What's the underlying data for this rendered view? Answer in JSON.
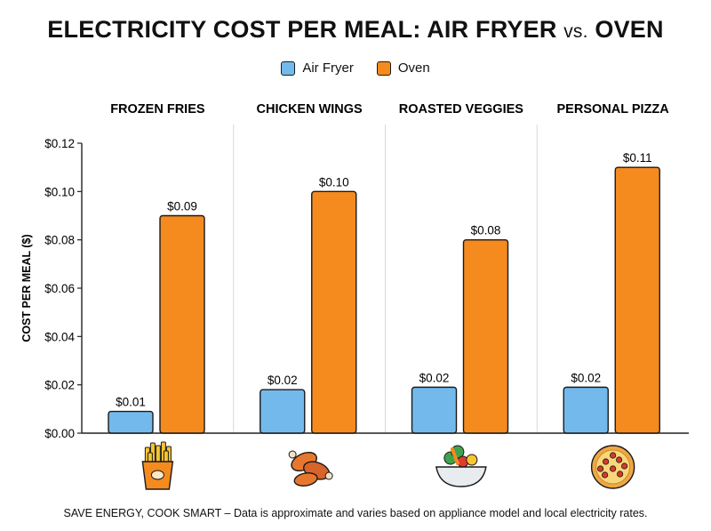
{
  "title": {
    "part1": "ELECTRICITY COST PER MEAL: AIR FRYER ",
    "vs": "vs.",
    "part2": " OVEN"
  },
  "legend": {
    "air_fryer": "Air Fryer",
    "oven": "Oven"
  },
  "footnote": "SAVE ENERGY, COOK SMART – Data is approximate and varies based on appliance model and local electricity rates.",
  "icons": [
    "fries-icon",
    "chicken-wings-icon",
    "veggie-bowl-icon",
    "pizza-icon"
  ],
  "chart_data": {
    "type": "bar",
    "title": "ELECTRICITY COST PER MEAL: AIR FRYER vs. OVEN",
    "xlabel": "",
    "ylabel": "COST PER MEAL ($)",
    "categories": [
      "FROZEN FRIES",
      "CHICKEN WINGS",
      "ROASTED VEGGIES",
      "PERSONAL PIZZA"
    ],
    "series": [
      {
        "name": "Air Fryer",
        "color": "#74b9ec",
        "values": [
          0.009,
          0.018,
          0.019,
          0.019
        ],
        "labels": [
          "$0.01",
          "$0.02",
          "$0.02",
          "$0.02"
        ]
      },
      {
        "name": "Oven",
        "color": "#f58a1f",
        "values": [
          0.09,
          0.1,
          0.08,
          0.11
        ],
        "labels": [
          "$0.09",
          "$0.10",
          "$0.08",
          "$0.11"
        ]
      }
    ],
    "ylim": [
      0,
      0.12
    ],
    "yticks": [
      0,
      0.02,
      0.04,
      0.06,
      0.08,
      0.1,
      0.12
    ],
    "ytick_labels": [
      "$0.00",
      "$0.02",
      "$0.04",
      "$0.06",
      "$0.08",
      "$0.10",
      "$0.12"
    ],
    "grid": "vertical separators between categories",
    "legend_position": "top-center"
  }
}
